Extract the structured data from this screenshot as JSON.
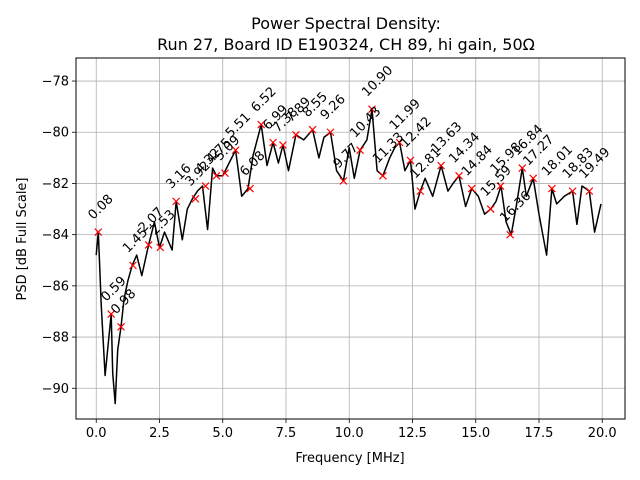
{
  "chart_data": {
    "type": "line",
    "title_line1": "Power Spectral Density:",
    "title_line2": "Run 27, Board ID E190324, CH 89, hi gain, 50Ω",
    "xlabel": "Frequency [MHz]",
    "ylabel": "PSD [dB Full Scale]",
    "xlim": [
      -0.8,
      20.9
    ],
    "ylim": [
      -91.2,
      -77.1
    ],
    "xticks": [
      0.0,
      2.5,
      5.0,
      7.5,
      10.0,
      12.5,
      15.0,
      17.5,
      20.0
    ],
    "xtick_labels": [
      "0.0",
      "2.5",
      "5.0",
      "7.5",
      "10.0",
      "12.5",
      "15.0",
      "17.5",
      "20.0"
    ],
    "yticks": [
      -90,
      -88,
      -86,
      -84,
      -82,
      -80,
      -78
    ],
    "ytick_labels": [
      "−90",
      "−88",
      "−86",
      "−84",
      "−82",
      "−80",
      "−78"
    ],
    "grid": true,
    "line_color": "#000000",
    "marker_color": "#ff0000",
    "series": [
      {
        "x": [
          0.0,
          0.08,
          0.2,
          0.35,
          0.5,
          0.59,
          0.65,
          0.75,
          0.85,
          0.98,
          1.1,
          1.25,
          1.42,
          1.6,
          1.8,
          2.07,
          2.3,
          2.5,
          2.7,
          3.0,
          3.16,
          3.4,
          3.6,
          3.8,
          4.0,
          4.2,
          4.4,
          4.6,
          4.75,
          5.0,
          5.25,
          5.51,
          5.75,
          6.0,
          6.2,
          6.52,
          6.75,
          6.99,
          7.2,
          7.38,
          7.6,
          7.89,
          8.2,
          8.55,
          8.8,
          9.0,
          9.26,
          9.5,
          9.77,
          10.0,
          10.2,
          10.43,
          10.7,
          10.9,
          11.1,
          11.33,
          11.6,
          11.8,
          11.99,
          12.2,
          12.42,
          12.6,
          12.81,
          13.0,
          13.3,
          13.63,
          13.9,
          14.1,
          14.34,
          14.6,
          14.84,
          15.1,
          15.35,
          15.59,
          15.8,
          16.0,
          16.2,
          16.4,
          16.6,
          16.84,
          17.0,
          17.27,
          17.5,
          17.8,
          18.01,
          18.2,
          18.5,
          18.83,
          19.0,
          19.2,
          19.49,
          19.7,
          19.95
        ],
        "y": [
          -84.8,
          -83.9,
          -86.8,
          -89.5,
          -88.0,
          -87.1,
          -89.4,
          -90.6,
          -88.5,
          -87.6,
          -86.5,
          -85.8,
          -85.2,
          -84.8,
          -85.6,
          -84.4,
          -83.5,
          -84.5,
          -83.9,
          -84.6,
          -82.7,
          -84.2,
          -83.0,
          -82.6,
          -82.3,
          -82.1,
          -83.8,
          -81.4,
          -81.7,
          -81.7,
          -81.2,
          -80.7,
          -82.5,
          -82.2,
          -80.9,
          -79.7,
          -81.3,
          -80.4,
          -81.2,
          -80.5,
          -81.5,
          -80.1,
          -80.3,
          -79.9,
          -81.0,
          -80.2,
          -80.0,
          -81.5,
          -81.9,
          -80.6,
          -81.8,
          -80.7,
          -80.3,
          -79.1,
          -81.5,
          -81.7,
          -81.0,
          -80.6,
          -80.4,
          -81.5,
          -81.1,
          -83.0,
          -82.3,
          -81.8,
          -82.5,
          -81.3,
          -82.3,
          -82.0,
          -81.7,
          -82.9,
          -82.2,
          -82.5,
          -83.2,
          -83.0,
          -82.7,
          -82.1,
          -83.5,
          -84.0,
          -82.9,
          -81.4,
          -82.5,
          -81.8,
          -83.2,
          -84.8,
          -82.2,
          -82.8,
          -82.5,
          -82.3,
          -83.6,
          -82.1,
          -82.3,
          -83.9,
          -82.8
        ]
      }
    ],
    "peaks": [
      {
        "x": 0.08,
        "y": -83.9,
        "label": "0.08"
      },
      {
        "x": 0.59,
        "y": -87.1,
        "label": "0.59"
      },
      {
        "x": 0.98,
        "y": -87.6,
        "label": "0.98"
      },
      {
        "x": 1.45,
        "y": -85.2,
        "label": "1.45"
      },
      {
        "x": 2.07,
        "y": -84.4,
        "label": "2.07"
      },
      {
        "x": 2.53,
        "y": -84.5,
        "label": "2.53"
      },
      {
        "x": 3.16,
        "y": -82.7,
        "label": "3.16"
      },
      {
        "x": 3.92,
        "y": -82.6,
        "label": "3.92"
      },
      {
        "x": 4.32,
        "y": -82.1,
        "label": "4.32"
      },
      {
        "x": 4.75,
        "y": -81.7,
        "label": "4.75"
      },
      {
        "x": 5.09,
        "y": -81.6,
        "label": "5.09"
      },
      {
        "x": 5.51,
        "y": -80.7,
        "label": "5.51"
      },
      {
        "x": 6.08,
        "y": -82.2,
        "label": "6.08"
      },
      {
        "x": 6.52,
        "y": -79.7,
        "label": "6.52"
      },
      {
        "x": 6.99,
        "y": -80.4,
        "label": "6.99"
      },
      {
        "x": 7.38,
        "y": -80.5,
        "label": "7.38"
      },
      {
        "x": 7.89,
        "y": -80.1,
        "label": "7.89"
      },
      {
        "x": 8.55,
        "y": -79.9,
        "label": "8.55"
      },
      {
        "x": 9.26,
        "y": -80.0,
        "label": "9.26"
      },
      {
        "x": 9.77,
        "y": -81.9,
        "label": "9.77"
      },
      {
        "x": 10.43,
        "y": -80.7,
        "label": "10.43"
      },
      {
        "x": 10.9,
        "y": -79.1,
        "label": "10.90"
      },
      {
        "x": 11.33,
        "y": -81.7,
        "label": "11.33"
      },
      {
        "x": 11.99,
        "y": -80.4,
        "label": "11.99"
      },
      {
        "x": 12.42,
        "y": -81.1,
        "label": "12.42"
      },
      {
        "x": 12.81,
        "y": -82.3,
        "label": "12.81"
      },
      {
        "x": 13.63,
        "y": -81.3,
        "label": "13.63"
      },
      {
        "x": 14.34,
        "y": -81.7,
        "label": "14.34"
      },
      {
        "x": 14.84,
        "y": -82.2,
        "label": "14.84"
      },
      {
        "x": 15.59,
        "y": -83.0,
        "label": "15.59"
      },
      {
        "x": 15.98,
        "y": -82.1,
        "label": "15.98"
      },
      {
        "x": 16.36,
        "y": -84.0,
        "label": "16.36"
      },
      {
        "x": 16.84,
        "y": -81.4,
        "label": "16.84"
      },
      {
        "x": 17.27,
        "y": -81.8,
        "label": "17.27"
      },
      {
        "x": 18.01,
        "y": -82.2,
        "label": "18.01"
      },
      {
        "x": 18.83,
        "y": -82.3,
        "label": "18.83"
      },
      {
        "x": 19.49,
        "y": -82.3,
        "label": "19.49"
      }
    ]
  }
}
